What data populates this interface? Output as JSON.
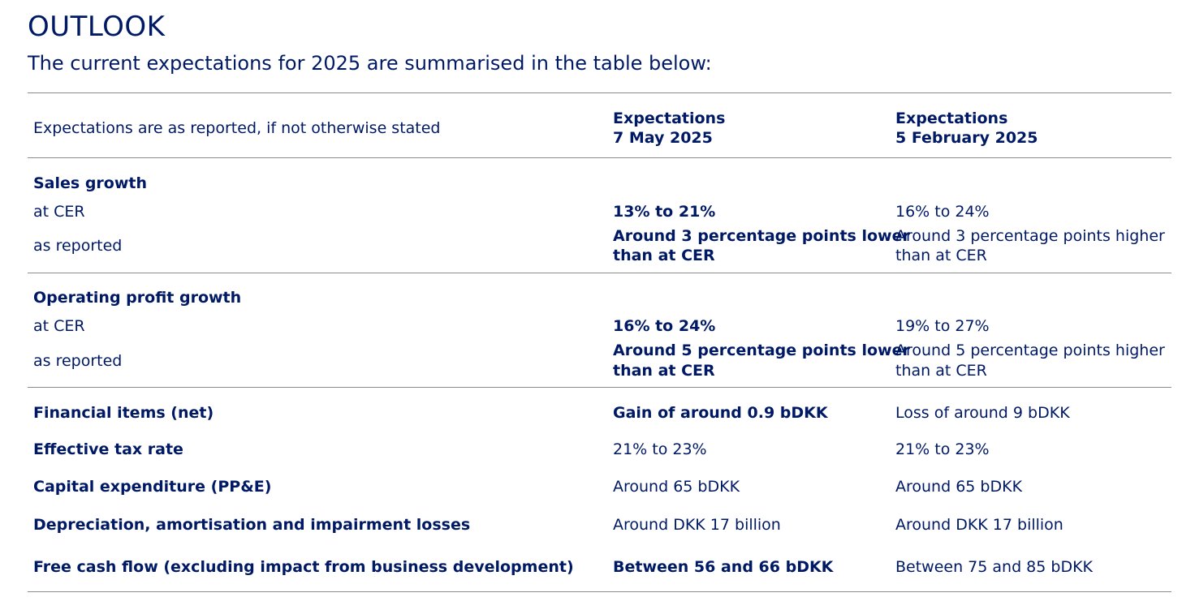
{
  "title": "OUTLOOK",
  "subtitle": "The current expectations for 2025 are summarised in the table below:",
  "header": {
    "note": "Expectations are as reported, if not otherwise stated",
    "col2_line1": "Expectations",
    "col2_line2": "7 May 2025",
    "col3_line1": "Expectations",
    "col3_line2": "5 February 2025"
  },
  "sales_growth": {
    "label": "Sales growth",
    "cer_label": "at CER",
    "cer_may": "13% to 21%",
    "cer_feb": "16% to 24%",
    "reported_label": "as reported",
    "reported_may_line1": "Around 3 percentage points lower",
    "reported_may_line2": "than at CER",
    "reported_feb_line1": "Around 3 percentage points higher",
    "reported_feb_line2": "than at CER"
  },
  "operating_profit_growth": {
    "label": "Operating profit growth",
    "cer_label": "at CER",
    "cer_may": "16% to 24%",
    "cer_feb": "19% to 27%",
    "reported_label": "as reported",
    "reported_may_line1": "Around 5 percentage points lower",
    "reported_may_line2": "than at CER",
    "reported_feb_line1": "Around 5 percentage points higher",
    "reported_feb_line2": "than at CER"
  },
  "rows": [
    {
      "label": "Financial items (net)",
      "may": "Gain of around 0.9 bDKK",
      "feb": "Loss of around 9 bDKK"
    },
    {
      "label": "Effective tax rate",
      "may": "21% to 23%",
      "feb": "21% to 23%"
    },
    {
      "label": "Capital expenditure (PP&E)",
      "may": "Around 65 bDKK",
      "feb": "Around 65 bDKK"
    },
    {
      "label": "Depreciation, amortisation and impairment losses",
      "may": "Around DKK 17 billion",
      "feb": "Around DKK 17 billion"
    },
    {
      "label": "Free cash flow (excluding impact from business development)",
      "may": "Between 56 and 66 bDKK",
      "feb": "Between 75 and 85 bDKK"
    }
  ],
  "colors": {
    "text": "#001965",
    "rule": "#8c8c8c"
  }
}
